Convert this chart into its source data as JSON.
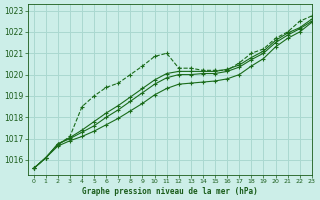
{
  "title": "Graphe pression niveau de la mer (hPa)",
  "background_color": "#cceee8",
  "grid_color": "#aad8d0",
  "text_color": "#1a5c1a",
  "line_color": "#1a6b1a",
  "xlim": [
    -0.5,
    23
  ],
  "ylim": [
    1015.3,
    1023.3
  ],
  "yticks": [
    1016,
    1017,
    1018,
    1019,
    1020,
    1021,
    1022,
    1023
  ],
  "xticks": [
    0,
    1,
    2,
    3,
    4,
    5,
    6,
    7,
    8,
    9,
    10,
    11,
    12,
    13,
    14,
    15,
    16,
    17,
    18,
    19,
    20,
    21,
    22,
    23
  ],
  "series": [
    [
      1015.6,
      1016.1,
      1016.7,
      1017.1,
      1018.5,
      1019.0,
      1019.4,
      1019.6,
      1020.0,
      1020.4,
      1020.85,
      1021.0,
      1020.3,
      1020.3,
      1020.2,
      1020.2,
      1020.2,
      1020.55,
      1021.0,
      1021.2,
      1021.7,
      1022.0,
      1022.5,
      1022.75
    ],
    [
      1015.6,
      1016.1,
      1016.75,
      1017.05,
      1017.4,
      1017.8,
      1018.2,
      1018.55,
      1018.95,
      1019.35,
      1019.75,
      1020.05,
      1020.15,
      1020.15,
      1020.15,
      1020.15,
      1020.25,
      1020.45,
      1020.8,
      1021.1,
      1021.6,
      1021.95,
      1022.2,
      1022.6
    ],
    [
      1015.6,
      1016.1,
      1016.75,
      1017.0,
      1017.3,
      1017.6,
      1018.0,
      1018.35,
      1018.75,
      1019.15,
      1019.55,
      1019.85,
      1020.0,
      1020.0,
      1020.05,
      1020.05,
      1020.15,
      1020.35,
      1020.7,
      1021.0,
      1021.5,
      1021.85,
      1022.15,
      1022.5
    ],
    [
      1015.6,
      1016.1,
      1016.65,
      1016.9,
      1017.1,
      1017.35,
      1017.65,
      1017.95,
      1018.3,
      1018.65,
      1019.05,
      1019.35,
      1019.55,
      1019.6,
      1019.65,
      1019.7,
      1019.8,
      1020.0,
      1020.4,
      1020.75,
      1021.3,
      1021.7,
      1022.0,
      1022.45
    ]
  ],
  "linestyles": [
    "dashed",
    "solid",
    "solid",
    "solid"
  ]
}
